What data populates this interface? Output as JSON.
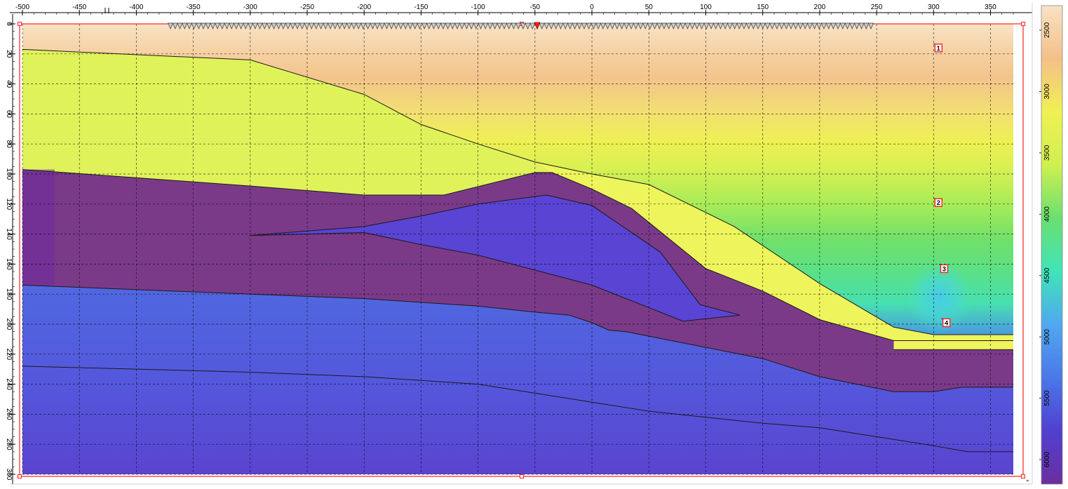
{
  "x_axis": {
    "min": -500,
    "max": 350,
    "tick_labels": [
      "-500",
      "-450",
      "-400",
      "-350",
      "-300",
      "-250",
      "-200",
      "-150",
      "-100",
      "-50",
      "0",
      "50",
      "100",
      "150",
      "200",
      "250",
      "300",
      "350"
    ],
    "tick_values": [
      -500,
      -450,
      -400,
      -350,
      -300,
      -250,
      -200,
      -150,
      -100,
      -50,
      0,
      50,
      100,
      150,
      200,
      250,
      300,
      350
    ]
  },
  "y_axis": {
    "min": 0,
    "max": 300,
    "tick_labels": [
      "0",
      "20",
      "40",
      "60",
      "80",
      "100",
      "120",
      "140",
      "160",
      "180",
      "200",
      "220",
      "240",
      "260",
      "280",
      "300"
    ],
    "tick_values": [
      0,
      20,
      40,
      60,
      80,
      100,
      120,
      140,
      160,
      180,
      200,
      220,
      240,
      260,
      280,
      300
    ]
  },
  "colorbar": {
    "tick_labels": [
      "2500",
      "3000",
      "3500",
      "4000",
      "4500",
      "5000",
      "5500",
      "6000"
    ],
    "tick_values": [
      2500,
      3000,
      3500,
      4000,
      4500,
      5000,
      5500,
      6000
    ],
    "min": 2300,
    "max": 6200,
    "colors": [
      "#f8e2c4",
      "#f4c088",
      "#f0f054",
      "#d0f050",
      "#6ae070",
      "#40e4b8",
      "#50a8f0",
      "#4a78e8",
      "#5040d0",
      "#6c2ea0"
    ]
  },
  "markers": [
    {
      "label": "1",
      "x": 300,
      "y": 13
    },
    {
      "label": "2",
      "x": 300,
      "y": 116
    },
    {
      "label": "3",
      "x": 305,
      "y": 160
    },
    {
      "label": "4",
      "x": 307,
      "y": 196
    }
  ],
  "receivers": {
    "start": -370,
    "end": 245,
    "count": 150,
    "source_x": -48
  },
  "layer_colors": {
    "green_yellow": "#dff25a",
    "yellow": "#eef45c",
    "purple": "#7a3a88",
    "blue_wedge": "#5a44d4",
    "blue_lower": "#5060e0",
    "blue_deep": "#5248d8"
  },
  "frame_color": "#ff2020",
  "chart_data": {
    "type": "heatmap",
    "xlim": [
      -500,
      350
    ],
    "ylim": [
      300,
      0
    ],
    "colorbar_range": [
      2500,
      6000
    ],
    "layers": [
      {
        "name": "",
        "region": "near-surface gradient",
        "values_range": [
          2500,
          4500
        ]
      },
      {
        "name": "",
        "region": "green-yellow layer",
        "value": 3300
      },
      {
        "name": "",
        "region": "yellow layer",
        "value": 3400
      },
      {
        "name": "",
        "region": "purple layer",
        "value": 5900
      },
      {
        "name": "",
        "region": "blue wedge",
        "value": 5600
      },
      {
        "name": "",
        "region": "lower blue",
        "value": 5300
      }
    ],
    "boundaries": {
      "top_surface": [
        [
          -500,
          17
        ],
        [
          -300,
          24
        ],
        [
          -200,
          47
        ],
        [
          -150,
          67
        ],
        [
          -100,
          80
        ],
        [
          -50,
          92
        ],
        [
          0,
          100
        ],
        [
          50,
          107
        ],
        [
          125,
          135
        ],
        [
          200,
          173
        ],
        [
          265,
          202
        ],
        [
          300,
          207
        ],
        [
          370,
          207
        ]
      ],
      "green_yellow_base": [
        [
          -500,
          97
        ],
        [
          -300,
          108
        ],
        [
          -200,
          114
        ],
        [
          -130,
          114
        ],
        [
          -50,
          99
        ],
        [
          -35,
          99
        ],
        [
          0,
          110
        ],
        [
          35,
          123
        ],
        [
          100,
          163
        ],
        [
          150,
          178
        ],
        [
          200,
          197
        ],
        [
          265,
          211
        ],
        [
          370,
          211
        ]
      ],
      "purple_top_right": [
        [
          265,
          217
        ],
        [
          370,
          217
        ]
      ],
      "wedge": [
        [
          -300,
          141
        ],
        [
          -200,
          135
        ],
        [
          -150,
          128
        ],
        [
          -100,
          120
        ],
        [
          -40,
          114
        ],
        [
          0,
          121
        ],
        [
          60,
          152
        ],
        [
          95,
          187
        ],
        [
          130,
          194
        ],
        [
          80,
          198
        ],
        [
          0,
          174
        ],
        [
          -50,
          164
        ],
        [
          -100,
          154
        ],
        [
          -150,
          147
        ],
        [
          -200,
          139
        ],
        [
          -300,
          141
        ]
      ],
      "purple_base": [
        [
          -500,
          174
        ],
        [
          -300,
          180
        ],
        [
          -200,
          183
        ],
        [
          -100,
          188
        ],
        [
          -50,
          192
        ],
        [
          -20,
          194
        ],
        [
          0,
          199
        ],
        [
          15,
          204
        ],
        [
          30,
          205
        ],
        [
          150,
          223
        ],
        [
          200,
          235
        ],
        [
          265,
          245
        ],
        [
          300,
          245
        ],
        [
          325,
          242
        ],
        [
          370,
          242
        ]
      ],
      "deep_boundary": [
        [
          -500,
          228
        ],
        [
          -300,
          232
        ],
        [
          -200,
          235
        ],
        [
          -100,
          240
        ],
        [
          -50,
          246
        ],
        [
          0,
          252
        ],
        [
          50,
          258
        ],
        [
          100,
          262
        ],
        [
          150,
          266
        ],
        [
          200,
          269
        ],
        [
          250,
          275
        ],
        [
          300,
          281
        ],
        [
          330,
          285
        ],
        [
          370,
          285
        ]
      ]
    }
  }
}
